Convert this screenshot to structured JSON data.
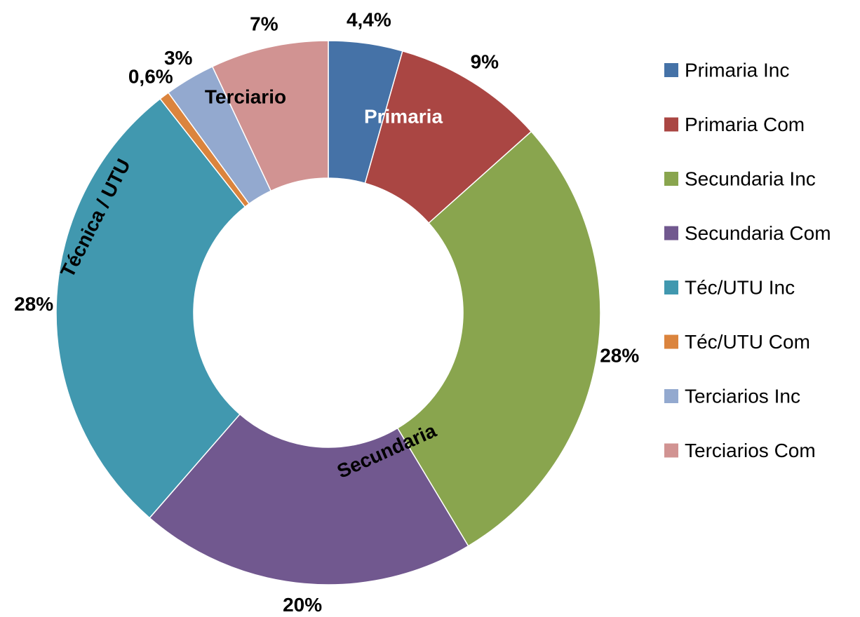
{
  "chart_data": {
    "type": "donut",
    "categories": [
      "Primaria Inc",
      "Primaria Com",
      "Secundaria Inc",
      "Secundaria Com",
      "Téc/UTU Inc",
      "Téc/UTU Com",
      "Terciarios Inc",
      "Terciarios Com"
    ],
    "values": [
      4.4,
      9,
      28,
      20,
      28,
      0.6,
      3,
      7
    ],
    "value_labels": [
      "4,4%",
      "9%",
      "28%",
      "20%",
      "28%",
      "0,6%",
      "3%",
      "7%"
    ],
    "colors": [
      "#4572A7",
      "#AA4643",
      "#89A54E",
      "#71588F",
      "#4198AF",
      "#DB843D",
      "#93A9CF",
      "#D19392"
    ],
    "annotations": [
      "Primaria",
      "Secundaria",
      "Técnica / UTU",
      "Terciario"
    ],
    "legend": "right"
  }
}
